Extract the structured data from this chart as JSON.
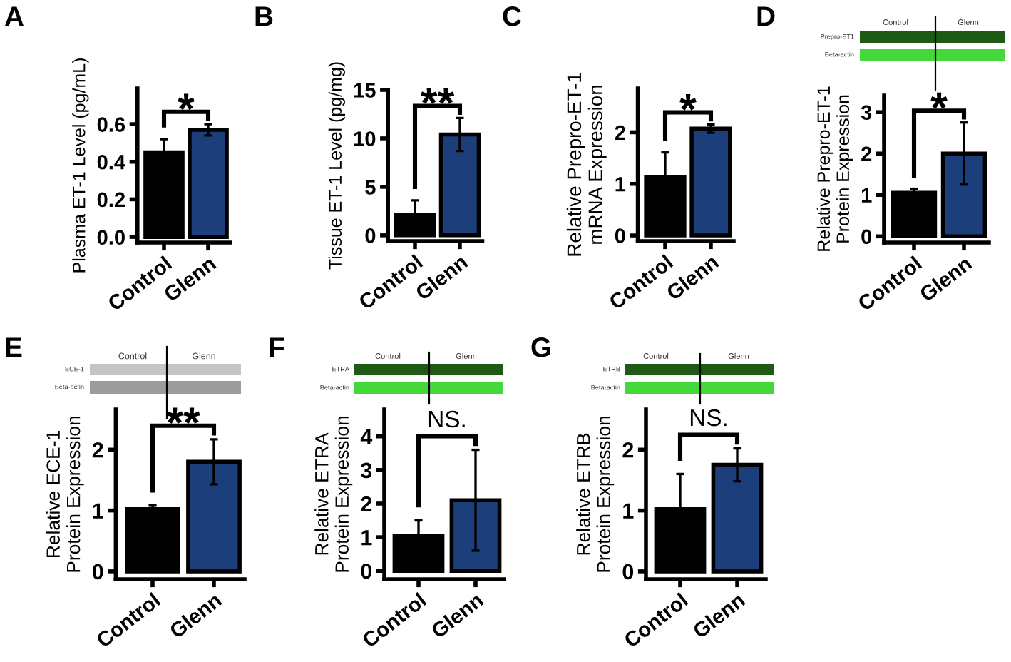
{
  "chart_data": [
    {
      "type": "bar",
      "title": "A",
      "ylabel": "Plasma ET-1 Level (pg/mL)",
      "categories": [
        "Control",
        "Glenn"
      ],
      "values": [
        0.45,
        0.57
      ],
      "colors": [
        "#000000",
        "#1c3f7c"
      ],
      "errors": [
        0.07,
        0.03
      ],
      "ylim": [
        -0.03,
        0.79
      ],
      "yticks": [
        {
          "value": 0,
          "label": "0.0"
        },
        0.2,
        0.4,
        0.6
      ],
      "annotations": [
        "*"
      ]
    },
    {
      "type": "bar",
      "title": "B",
      "ylabel": "Tissue ET-1 Level (pg/mg)",
      "categories": [
        "Control",
        "Glenn"
      ],
      "values": [
        2.1,
        10.4
      ],
      "colors": [
        "#000000",
        "#1c3f7c"
      ],
      "errors": [
        1.5,
        1.7
      ],
      "ylim": [
        -0.6,
        15
      ],
      "yticks": [
        0,
        5,
        10,
        15
      ],
      "annotations": [
        "**"
      ]
    },
    {
      "type": "bar",
      "title": "C",
      "ylabel": "Relative Prepro-ET-1\nmRNA Expression",
      "categories": [
        "Control",
        "Glenn"
      ],
      "values": [
        1.13,
        2.07
      ],
      "colors": [
        "#000000",
        "#1c3f7c"
      ],
      "errors": [
        0.48,
        0.08
      ],
      "ylim": [
        -0.11,
        2.85
      ],
      "yticks": [
        0,
        1,
        2
      ],
      "annotations": [
        "*"
      ]
    },
    {
      "type": "bar",
      "title": "D",
      "ylabel": "Relative Prepro-ET-1\nProtein Expression",
      "categories": [
        "Control",
        "Glenn"
      ],
      "values": [
        1.05,
        2.0
      ],
      "colors": [
        "#000000",
        "#1c3f7c"
      ],
      "errors": [
        0.1,
        0.75
      ],
      "ylim": [
        -0.15,
        3.4
      ],
      "yticks": [
        0,
        1,
        2,
        3
      ],
      "annotations": [
        "*",
        "Control",
        "Glenn",
        "Prepro-ET1",
        "Beta-actin"
      ]
    },
    {
      "type": "bar",
      "title": "E",
      "ylabel": "Relative ECE-1\nProtein Expression",
      "categories": [
        "Control",
        "Glenn"
      ],
      "values": [
        1.02,
        1.8
      ],
      "colors": [
        "#000000",
        "#1c3f7c"
      ],
      "errors": [
        0.06,
        0.37
      ],
      "ylim": [
        -0.13,
        2.66
      ],
      "yticks": [
        0,
        1,
        2
      ],
      "annotations": [
        "**",
        "Control",
        "Glenn",
        "ECE-1",
        "Beta-actin"
      ]
    },
    {
      "type": "bar",
      "title": "F",
      "ylabel": "Relative ETRA\nProtein Expression",
      "categories": [
        "Control",
        "Glenn"
      ],
      "values": [
        1.05,
        2.1
      ],
      "colors": [
        "#000000",
        "#1c3f7c"
      ],
      "errors": [
        0.45,
        1.5
      ],
      "ylim": [
        -0.25,
        4.8
      ],
      "yticks": [
        0,
        1,
        2,
        3,
        4
      ],
      "annotations": [
        "NS.",
        "Control",
        "Glenn",
        "ETRA",
        "Beta-actin"
      ]
    },
    {
      "type": "bar",
      "title": "G",
      "ylabel": "Relative ETRB\nProtein Expression",
      "categories": [
        "Control",
        "Glenn"
      ],
      "values": [
        1.02,
        1.75
      ],
      "colors": [
        "#000000",
        "#1c3f7c"
      ],
      "errors": [
        0.58,
        0.27
      ],
      "ylim": [
        -0.13,
        2.66
      ],
      "yticks": [
        0,
        1,
        2
      ],
      "annotations": [
        "NS.",
        "Control",
        "Glenn",
        "ETRB",
        "Beta-actin"
      ]
    }
  ]
}
